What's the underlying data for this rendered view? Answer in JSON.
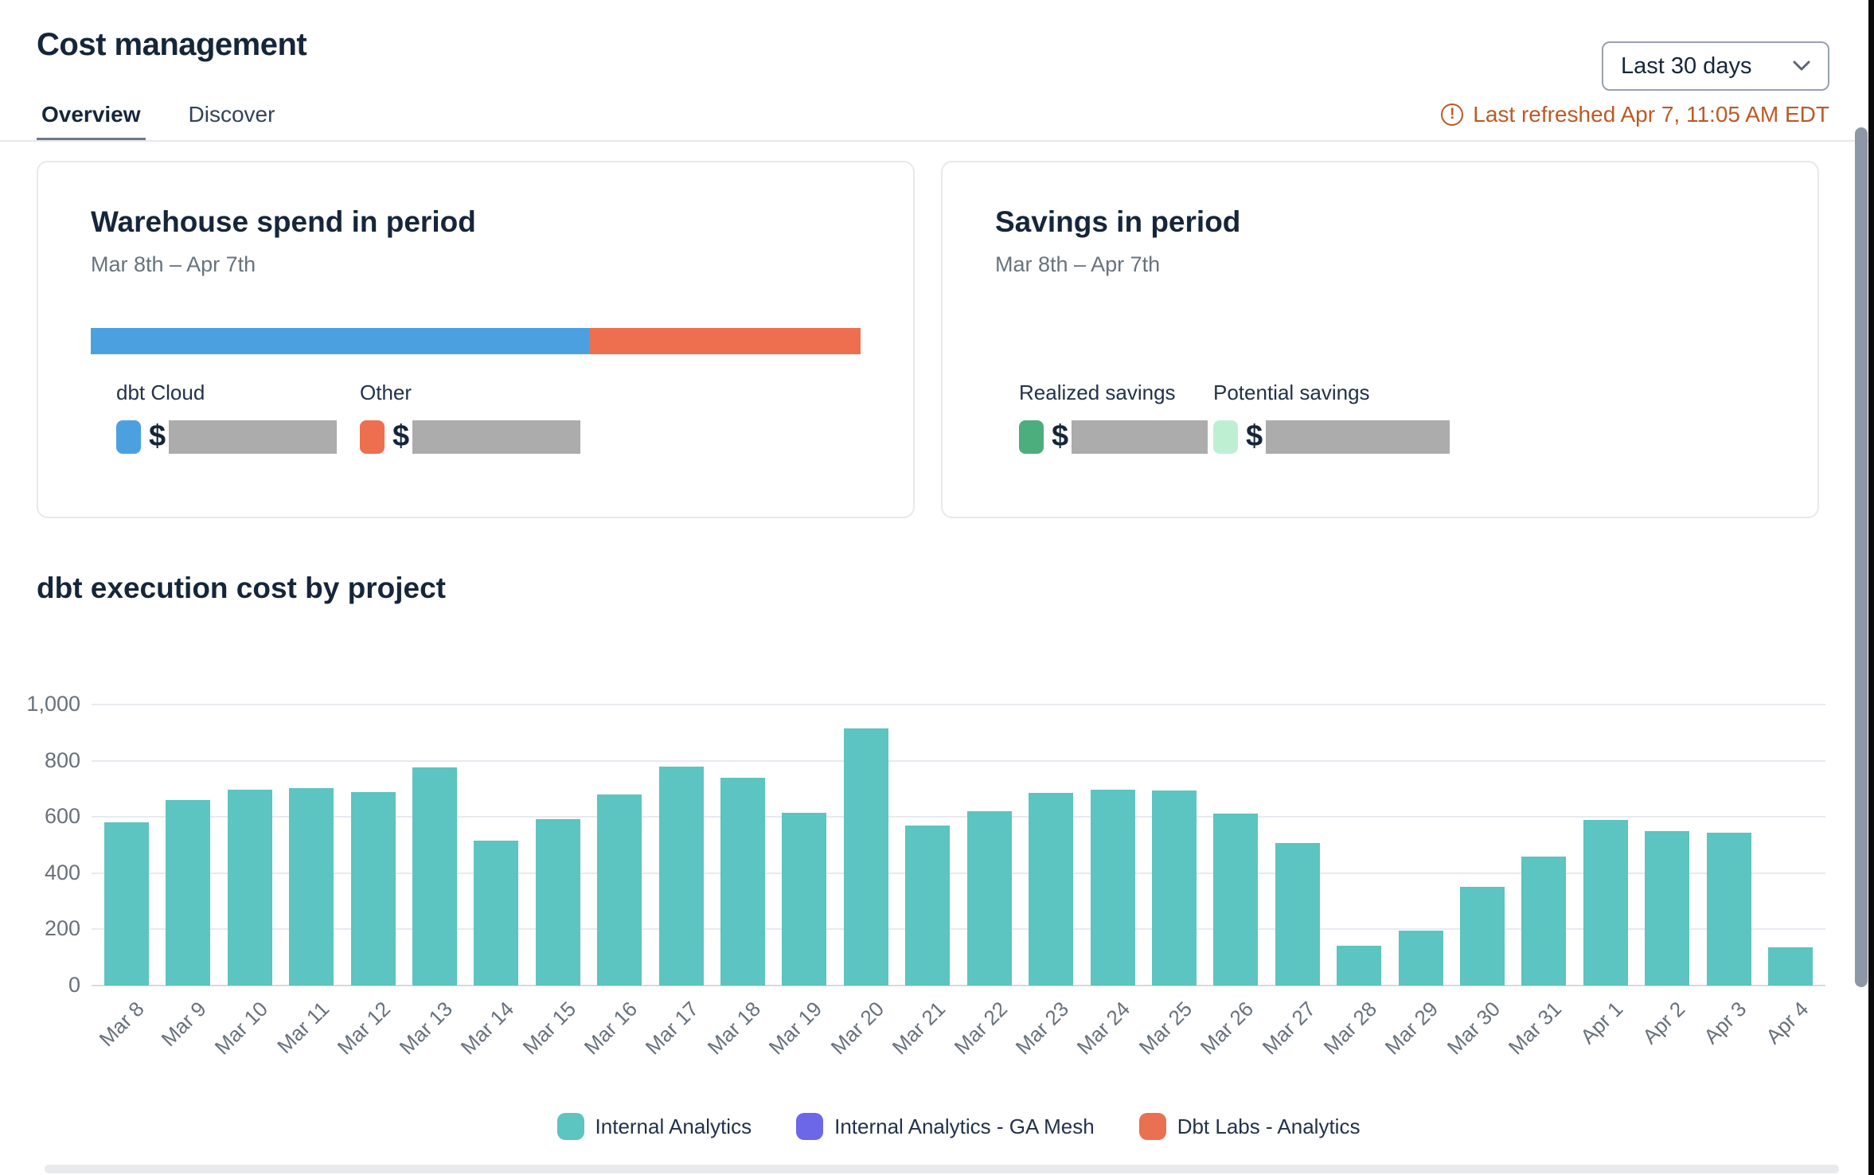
{
  "header": {
    "title": "Cost management",
    "tabs": [
      {
        "label": "Overview",
        "active": true
      },
      {
        "label": "Discover",
        "active": false
      }
    ],
    "date_range": {
      "selected": "Last 30 days"
    },
    "last_refreshed": "Last refreshed Apr 7, 11:05 AM EDT",
    "last_refreshed_color": "#BC5A26"
  },
  "cards": {
    "warehouse": {
      "title": "Warehouse spend in period",
      "subtitle": "Mar 8th – Apr 7th",
      "currency_symbol": "$",
      "segments": [
        {
          "label": "dbt Cloud",
          "color": "#4BA1E0",
          "width_pct": 64.8,
          "value_redacted": true
        },
        {
          "label": "Other",
          "color": "#ED6F4F",
          "width_pct": 35.2,
          "value_redacted": true
        }
      ]
    },
    "savings": {
      "title": "Savings in period",
      "subtitle": "Mar 8th – Apr 7th",
      "currency_symbol": "$",
      "items": [
        {
          "label": "Realized savings",
          "color": "#4CAD7D",
          "value_redacted": true
        },
        {
          "label": "Potential savings",
          "color": "#BFEFD3",
          "value_redacted": true
        }
      ]
    }
  },
  "chart_data": {
    "type": "bar",
    "title": "dbt execution cost by project",
    "categories": [
      "Mar 8",
      "Mar 9",
      "Mar 10",
      "Mar 11",
      "Mar 12",
      "Mar 13",
      "Mar 14",
      "Mar 15",
      "Mar 16",
      "Mar 17",
      "Mar 18",
      "Mar 19",
      "Mar 20",
      "Mar 21",
      "Mar 22",
      "Mar 23",
      "Mar 24",
      "Mar 25",
      "Mar 26",
      "Mar 27",
      "Mar 28",
      "Mar 29",
      "Mar 30",
      "Mar 31",
      "Apr 1",
      "Apr 2",
      "Apr 3",
      "Apr 4"
    ],
    "series": [
      {
        "name": "Internal Analytics",
        "color": "#5CC4C1",
        "values": [
          580,
          660,
          698,
          703,
          688,
          775,
          515,
          593,
          680,
          780,
          740,
          615,
          915,
          570,
          620,
          685,
          698,
          695,
          612,
          508,
          143,
          196,
          350,
          460,
          588,
          550,
          543,
          135
        ]
      }
    ],
    "legend": [
      {
        "label": "Internal Analytics",
        "color": "#5CC4C1"
      },
      {
        "label": "Internal Analytics - GA Mesh",
        "color": "#6C67E8"
      },
      {
        "label": "Dbt Labs - Analytics",
        "color": "#E97050"
      }
    ],
    "xlabel": "",
    "ylabel": "",
    "ylim": [
      0,
      1000
    ],
    "yticks": [
      1000,
      800,
      600,
      400,
      200,
      0
    ],
    "grid": true,
    "legend_position": "bottom"
  }
}
